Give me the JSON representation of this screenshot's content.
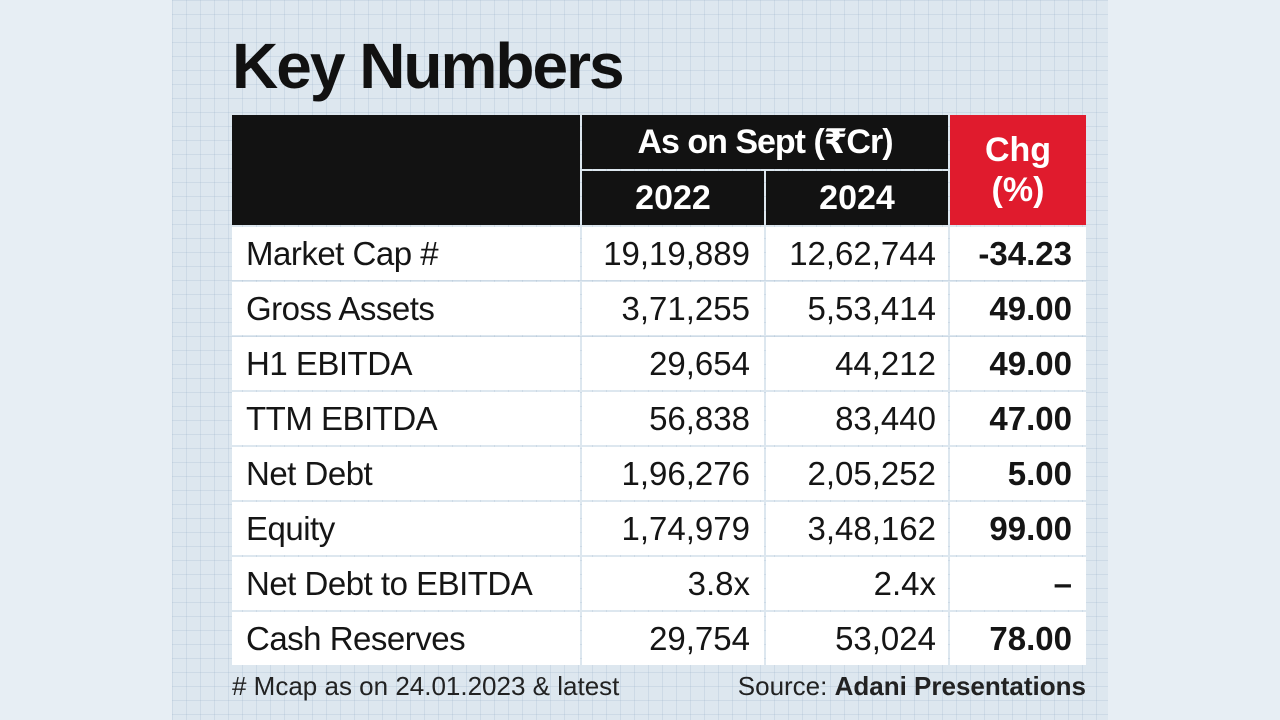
{
  "chart_data": {
    "type": "table",
    "title": "Key Numbers",
    "column_group": "As on Sept (₹Cr)",
    "columns": [
      "2022",
      "2024"
    ],
    "change_header_line1": "Chg",
    "change_header_line2": "(%)",
    "rows": [
      {
        "label": "Market Cap #",
        "v2022": "19,19,889",
        "v2024": "12,62,744",
        "chg": "-34.23"
      },
      {
        "label": "Gross Assets",
        "v2022": "3,71,255",
        "v2024": "5,53,414",
        "chg": "49.00"
      },
      {
        "label": "H1 EBITDA",
        "v2022": "29,654",
        "v2024": "44,212",
        "chg": "49.00"
      },
      {
        "label": "TTM EBITDA",
        "v2022": "56,838",
        "v2024": "83,440",
        "chg": "47.00"
      },
      {
        "label": "Net Debt",
        "v2022": "1,96,276",
        "v2024": "2,05,252",
        "chg": "5.00"
      },
      {
        "label": "Equity",
        "v2022": "1,74,979",
        "v2024": "3,48,162",
        "chg": "99.00"
      },
      {
        "label": "Net Debt to EBITDA",
        "v2022": "3.8x",
        "v2024": "2.4x",
        "chg": "–"
      },
      {
        "label": "Cash Reserves",
        "v2022": "29,754",
        "v2024": "53,024",
        "chg": "78.00"
      }
    ],
    "footnote": "# Mcap as on 24.01.2023 & latest",
    "source_prefix": "Source: ",
    "source_name": "Adani Presentations"
  },
  "colors": {
    "header_bg": "#121212",
    "change_header_bg": "#e01b2d",
    "cell_bg": "#ffffff"
  }
}
